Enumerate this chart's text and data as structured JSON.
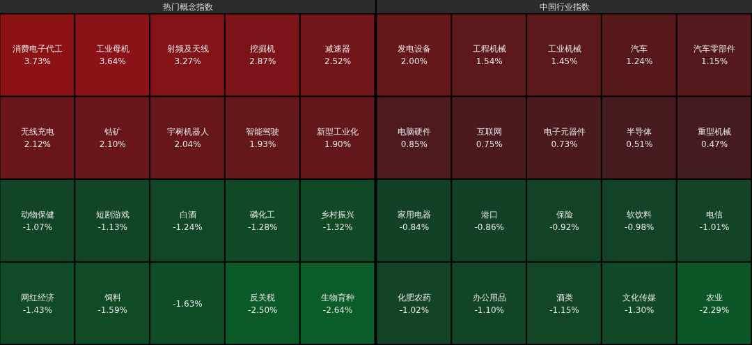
{
  "chart_data": [
    {
      "type": "other",
      "title": "热门概念指数",
      "categories": [
        "消费电子代工",
        "工业母机",
        "射频及天线",
        "挖掘机",
        "减速器",
        "无线充电",
        "钴矿",
        "宇树机器人",
        "智能驾驶",
        "新型工业化",
        "动物保健",
        "短剧游戏",
        "白酒",
        "磷化工",
        "乡村振兴",
        "网红经济",
        "饲料",
        null,
        "反关税",
        "生物育种"
      ],
      "values": [
        3.73,
        3.64,
        3.27,
        2.87,
        2.52,
        2.12,
        2.1,
        2.04,
        1.93,
        1.9,
        -1.07,
        -1.13,
        -1.24,
        -1.28,
        -1.32,
        -1.43,
        -1.59,
        -1.63,
        -2.5,
        -2.64
      ],
      "value_labels": [
        "3.73%",
        "3.64%",
        "3.27%",
        "2.87%",
        "2.52%",
        "2.12%",
        "2.10%",
        "2.04%",
        "1.93%",
        "1.90%",
        "-1.07%",
        "-1.13%",
        "-1.24%",
        "-1.28%",
        "-1.32%",
        "-1.43%",
        "-1.59%",
        "-1.63%",
        "-2.50%",
        "-2.64%"
      ]
    },
    {
      "type": "other",
      "title": "中国行业指数",
      "categories": [
        "发电设备",
        "工程机械",
        "工业机械",
        "汽车",
        "汽车零部件",
        "电脑硬件",
        "互联网",
        "电子元器件",
        "半导体",
        "重型机械",
        "家用电器",
        "港口",
        "保险",
        "软饮料",
        "电信",
        "化肥农药",
        "办公用品",
        "酒类",
        "文化传媒",
        "农业"
      ],
      "values": [
        2.0,
        1.54,
        1.45,
        1.24,
        1.15,
        0.85,
        0.75,
        0.73,
        0.51,
        0.47,
        -0.84,
        -0.86,
        -0.92,
        -0.98,
        -1.01,
        -1.02,
        -1.1,
        -1.15,
        -1.3,
        -2.29
      ],
      "value_labels": [
        "2.00%",
        "1.54%",
        "1.45%",
        "1.24%",
        "1.15%",
        "0.85%",
        "0.75%",
        "0.73%",
        "0.51%",
        "0.47%",
        "-0.84%",
        "-0.86%",
        "-0.92%",
        "-0.98%",
        "-1.01%",
        "-1.02%",
        "-1.10%",
        "-1.15%",
        "-1.30%",
        "-2.29%"
      ]
    }
  ]
}
